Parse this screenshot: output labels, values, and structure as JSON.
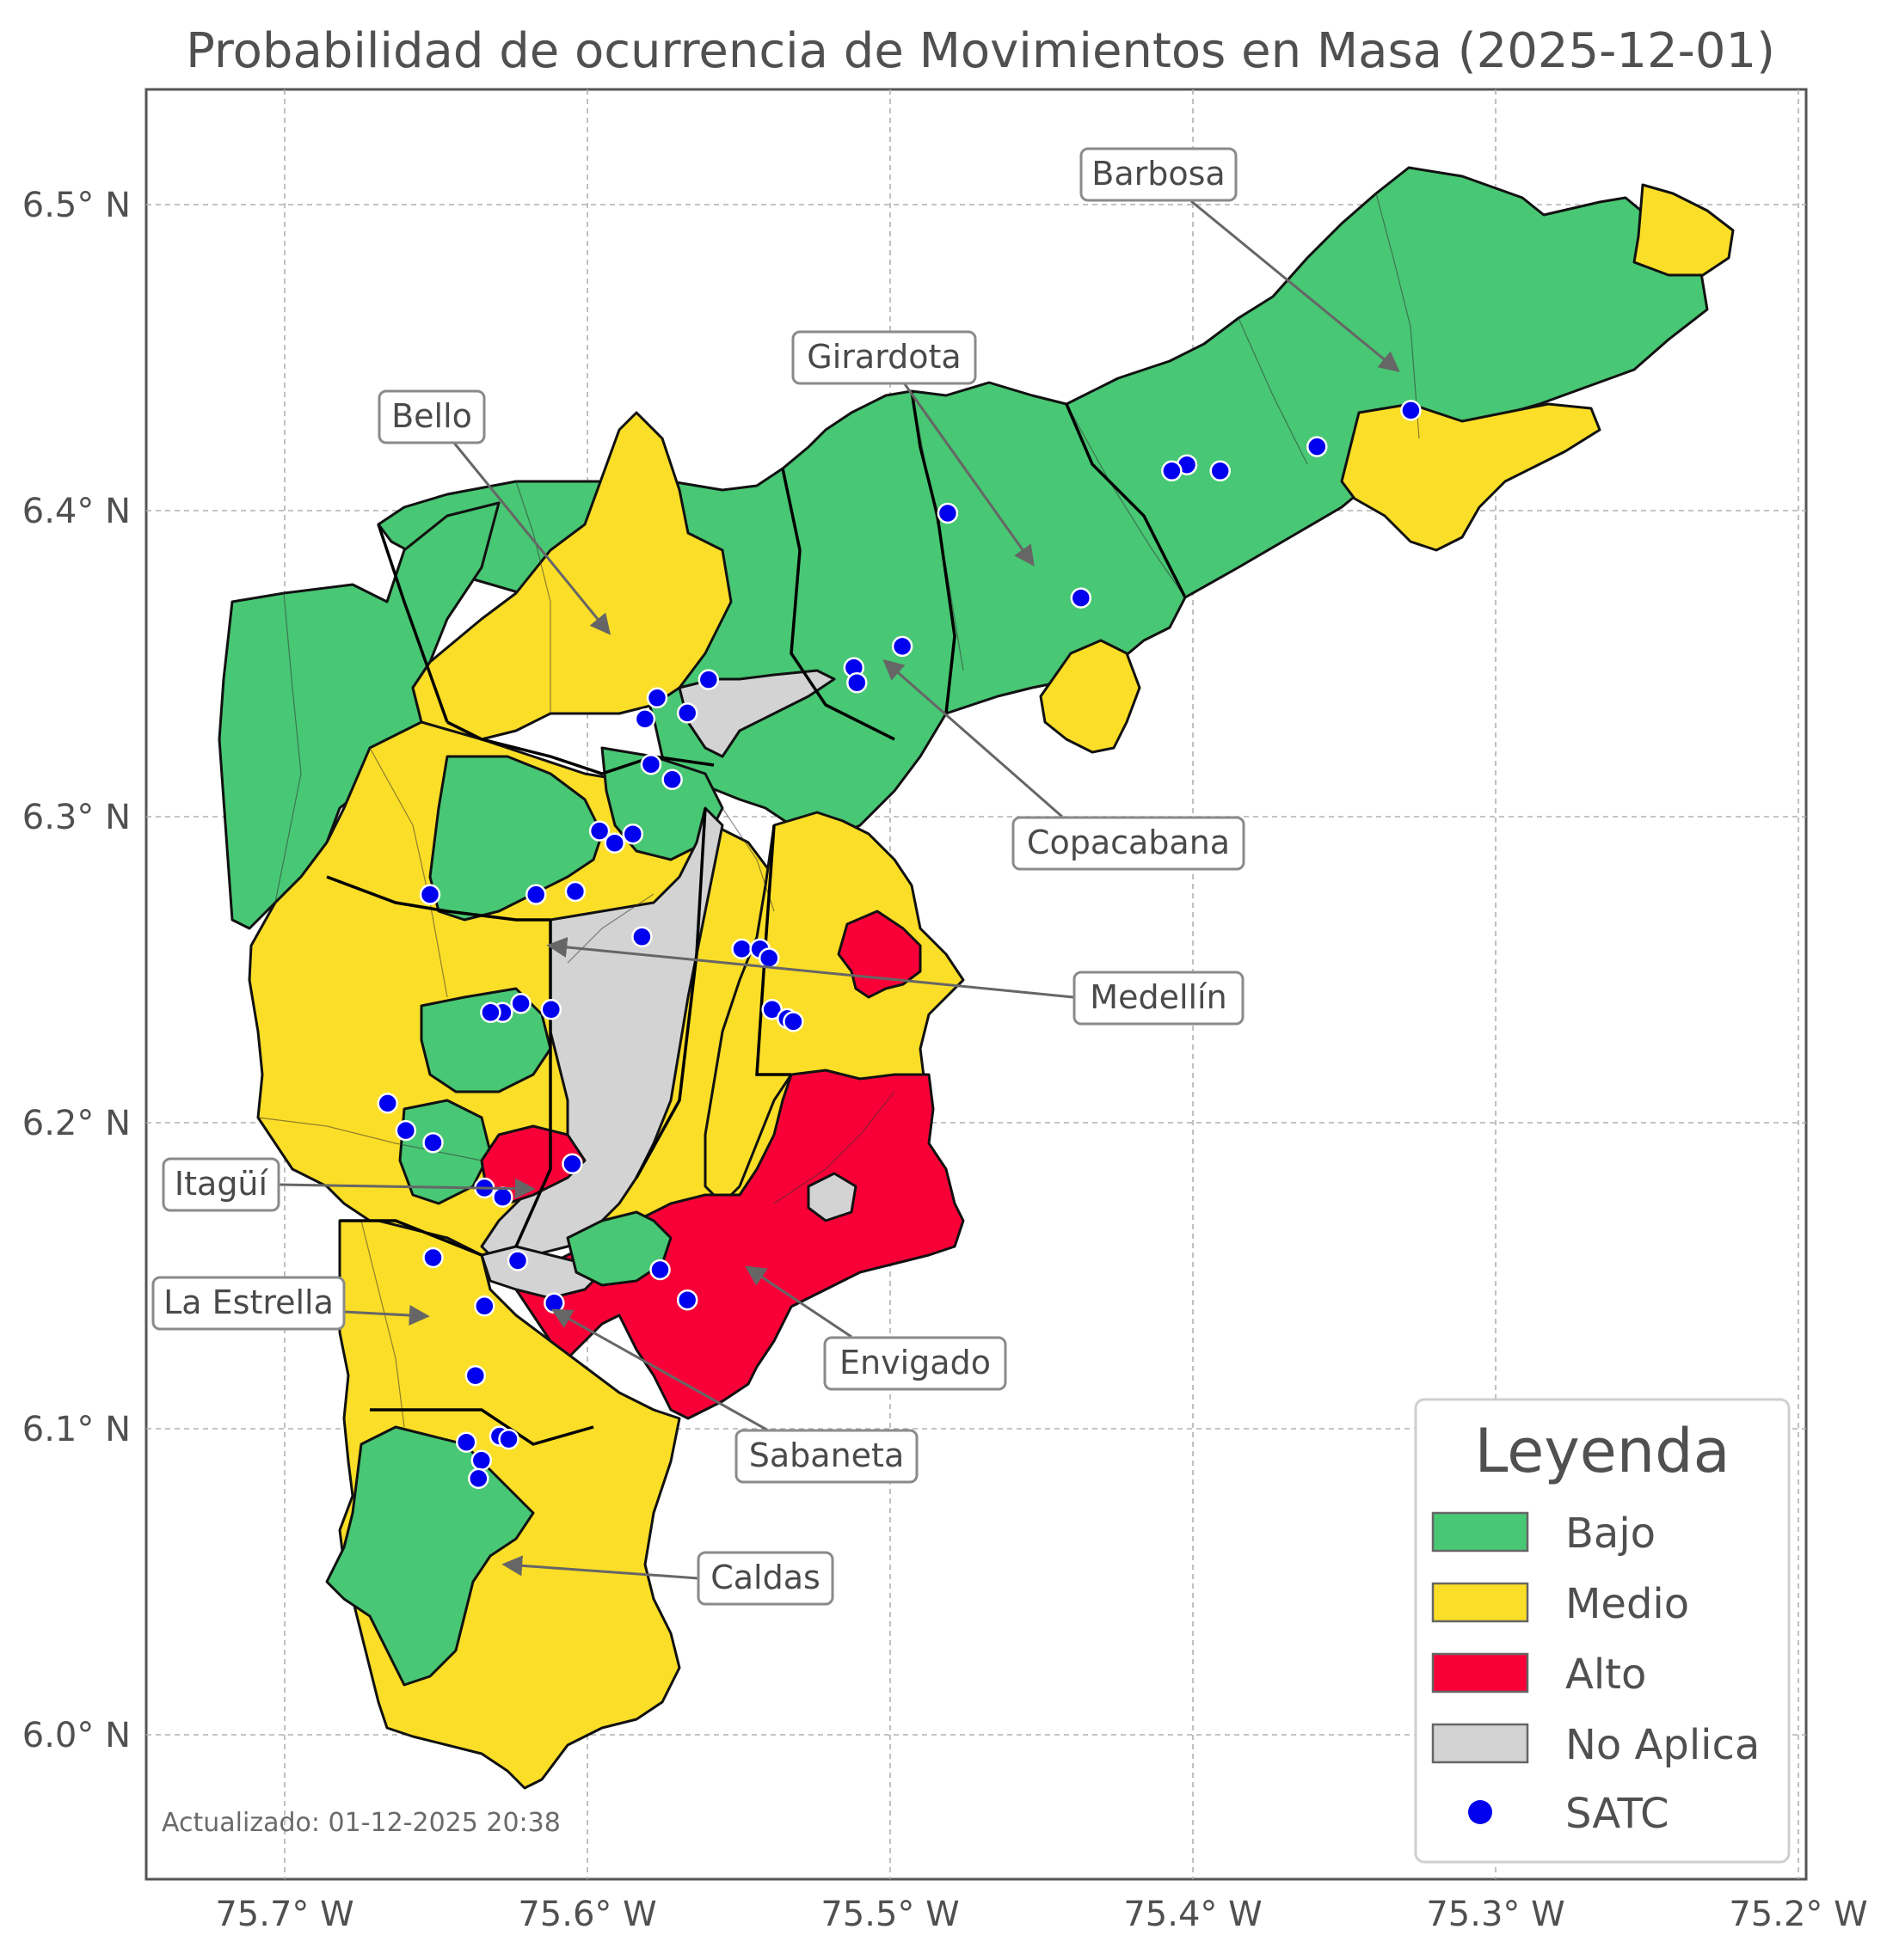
{
  "map": {
    "title": "Probabilidad de ocurrencia de Movimientos en Masa (2025-12-01)",
    "updated": "Actualizado: 01-12-2025 20:38",
    "x_ticks": [
      "75.7° W",
      "75.6° W",
      "75.5° W",
      "75.4° W",
      "75.3° W",
      "75.2° W"
    ],
    "y_ticks": [
      "6.5° N",
      "6.4° N",
      "6.3° N",
      "6.2° N",
      "6.1° N",
      "6.0° N"
    ],
    "lon_range": [
      -75.745,
      -75.2
    ],
    "lat_range": [
      5.95,
      6.538
    ],
    "grid": true
  },
  "colors": {
    "bajo": "#48c774",
    "medio": "#fbde27",
    "alto": "#f80037",
    "no_aplica": "#d3d3d3",
    "satc": "#0000ee"
  },
  "legend": {
    "title": "Leyenda",
    "items": [
      {
        "label": "Bajo",
        "color": "#48c774",
        "kind": "patch"
      },
      {
        "label": "Medio",
        "color": "#fbde27",
        "kind": "patch"
      },
      {
        "label": "Alto",
        "color": "#f80037",
        "kind": "patch"
      },
      {
        "label": "No Aplica",
        "color": "#d3d3d3",
        "kind": "patch"
      },
      {
        "label": "SATC",
        "color": "#0000ee",
        "kind": "dot"
      }
    ]
  },
  "municipalities": [
    {
      "name": "Barbosa",
      "level": "Bajo"
    },
    {
      "name": "Girardota",
      "level": "Bajo"
    },
    {
      "name": "Bello",
      "level": "Medio"
    },
    {
      "name": "Copacabana",
      "level": "Bajo"
    },
    {
      "name": "Medellín",
      "level": "Medio"
    },
    {
      "name": "Itagüí",
      "level": "Alto"
    },
    {
      "name": "La Estrella",
      "level": "Medio"
    },
    {
      "name": "Envigado",
      "level": "Alto"
    },
    {
      "name": "Sabaneta",
      "level": "Alto"
    },
    {
      "name": "Caldas",
      "level": "Medio"
    }
  ],
  "satc_stations": [
    [
      -75.328,
      6.432
    ],
    [
      -75.359,
      6.42
    ],
    [
      -75.391,
      6.412
    ],
    [
      -75.402,
      6.414
    ],
    [
      -75.407,
      6.412
    ],
    [
      -75.481,
      6.398
    ],
    [
      -75.437,
      6.37
    ],
    [
      -75.496,
      6.354
    ],
    [
      -75.512,
      6.347
    ],
    [
      -75.511,
      6.342
    ],
    [
      -75.56,
      6.343
    ],
    [
      -75.567,
      6.332
    ],
    [
      -75.577,
      6.337
    ],
    [
      -75.581,
      6.33
    ],
    [
      -75.579,
      6.315
    ],
    [
      -75.572,
      6.31
    ],
    [
      -75.585,
      6.292
    ],
    [
      -75.591,
      6.289
    ],
    [
      -75.596,
      6.293
    ],
    [
      -75.652,
      6.272
    ],
    [
      -75.617,
      6.272
    ],
    [
      -75.604,
      6.273
    ],
    [
      -75.582,
      6.258
    ],
    [
      -75.549,
      6.254
    ],
    [
      -75.543,
      6.254
    ],
    [
      -75.54,
      6.251
    ],
    [
      -75.622,
      6.236
    ],
    [
      -75.612,
      6.234
    ],
    [
      -75.628,
      6.233
    ],
    [
      -75.632,
      6.233
    ],
    [
      -75.539,
      6.234
    ],
    [
      -75.534,
      6.231
    ],
    [
      -75.532,
      6.23
    ],
    [
      -75.666,
      6.203
    ],
    [
      -75.66,
      6.194
    ],
    [
      -75.651,
      6.19
    ],
    [
      -75.605,
      6.183
    ],
    [
      -75.634,
      6.175
    ],
    [
      -75.628,
      6.172
    ],
    [
      -75.651,
      6.152
    ],
    [
      -75.623,
      6.151
    ],
    [
      -75.576,
      6.148
    ],
    [
      -75.567,
      6.138
    ],
    [
      -75.611,
      6.137
    ],
    [
      -75.634,
      6.136
    ],
    [
      -75.637,
      6.113
    ],
    [
      -75.64,
      6.091
    ],
    [
      -75.629,
      6.093
    ],
    [
      -75.626,
      6.092
    ],
    [
      -75.635,
      6.085
    ],
    [
      -75.636,
      6.079
    ]
  ]
}
